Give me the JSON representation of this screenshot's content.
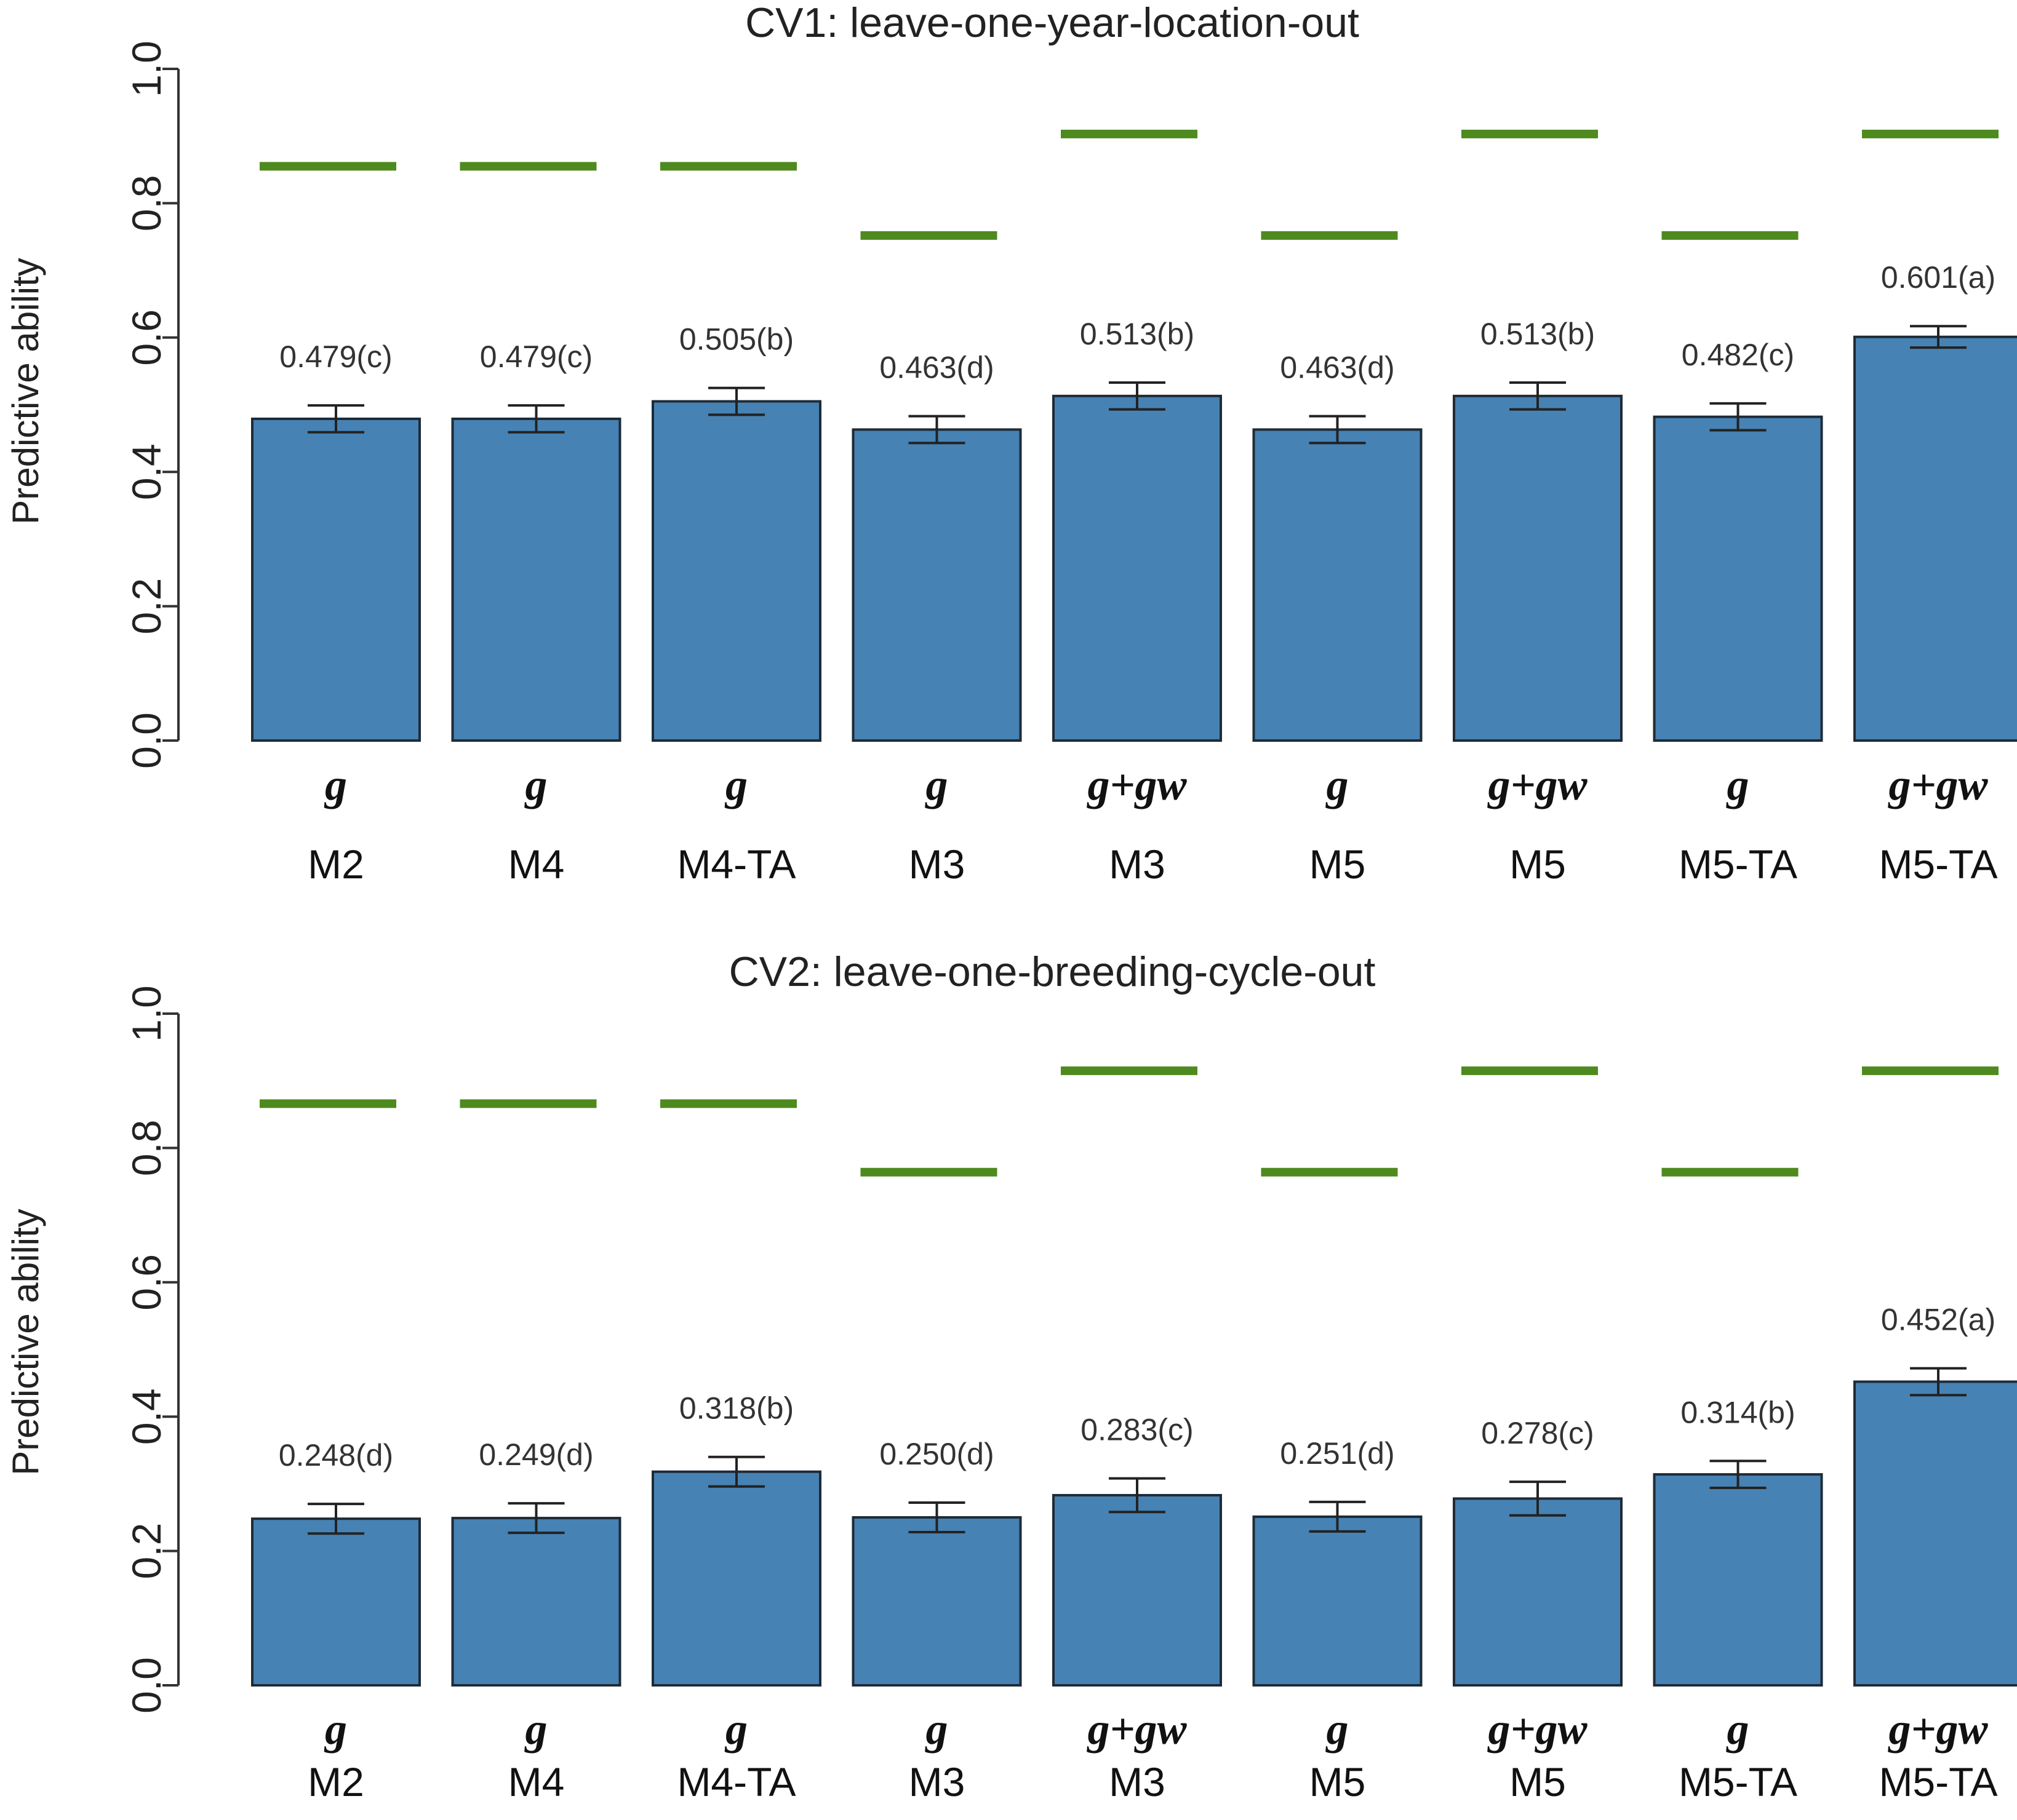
{
  "colors": {
    "bar": "#4682b4",
    "bar_edge": "#1e2b36",
    "heritability_line": "#4e8a1e",
    "axis": "#333333",
    "errorbar": "#222222"
  },
  "chart_data": [
    {
      "type": "bar",
      "title": "CV1: leave-one-year-location-out",
      "ylabel": "Predictive ability",
      "xlabel": "",
      "ylim": [
        0,
        1
      ],
      "yticks": [
        "0.0",
        "0.2",
        "0.4",
        "0.6",
        "0.8",
        "1.0"
      ],
      "categories": [
        {
          "effect": "g",
          "model": "M2"
        },
        {
          "effect": "g",
          "model": "M4"
        },
        {
          "effect": "g",
          "model": "M4-TA"
        },
        {
          "effect": "g",
          "model": "M3"
        },
        {
          "effect": "g+gw",
          "model": "M3"
        },
        {
          "effect": "g",
          "model": "M5"
        },
        {
          "effect": "g+gw",
          "model": "M5"
        },
        {
          "effect": "g",
          "model": "M5-TA"
        },
        {
          "effect": "g+gw",
          "model": "M5-TA"
        }
      ],
      "values": [
        0.479,
        0.479,
        0.505,
        0.463,
        0.513,
        0.463,
        0.513,
        0.482,
        0.601
      ],
      "error": [
        0.02,
        0.02,
        0.02,
        0.02,
        0.02,
        0.02,
        0.02,
        0.02,
        0.016
      ],
      "labels": [
        "0.479(c)",
        "0.479(c)",
        "0.505(b)",
        "0.463(d)",
        "0.513(b)",
        "0.463(d)",
        "0.513(b)",
        "0.482(c)",
        "0.601(a)"
      ],
      "reference_lines": [
        0.855,
        0.855,
        0.855,
        0.752,
        0.903,
        0.752,
        0.903,
        0.752,
        0.903
      ]
    },
    {
      "type": "bar",
      "title": "CV2: leave-one-breeding-cycle-out",
      "ylabel": "Predictive ability",
      "xlabel": "",
      "ylim": [
        0,
        1
      ],
      "yticks": [
        "0.0",
        "0.2",
        "0.4",
        "0.6",
        "0.8",
        "1.0"
      ],
      "categories": [
        {
          "effect": "g",
          "model": "M2"
        },
        {
          "effect": "g",
          "model": "M4"
        },
        {
          "effect": "g",
          "model": "M4-TA"
        },
        {
          "effect": "g",
          "model": "M3"
        },
        {
          "effect": "g+gw",
          "model": "M3"
        },
        {
          "effect": "g",
          "model": "M5"
        },
        {
          "effect": "g+gw",
          "model": "M5"
        },
        {
          "effect": "g",
          "model": "M5-TA"
        },
        {
          "effect": "g+gw",
          "model": "M5-TA"
        }
      ],
      "values": [
        0.248,
        0.249,
        0.318,
        0.25,
        0.283,
        0.251,
        0.278,
        0.314,
        0.452
      ],
      "error": [
        0.022,
        0.022,
        0.022,
        0.022,
        0.025,
        0.022,
        0.025,
        0.02,
        0.02
      ],
      "labels": [
        "0.248(d)",
        "0.249(d)",
        "0.318(b)",
        "0.250(d)",
        "0.283(c)",
        "0.251(d)",
        "0.278(c)",
        "0.314(b)",
        "0.452(a)"
      ],
      "reference_lines": [
        0.866,
        0.866,
        0.866,
        0.764,
        0.915,
        0.764,
        0.915,
        0.764,
        0.915
      ]
    }
  ]
}
